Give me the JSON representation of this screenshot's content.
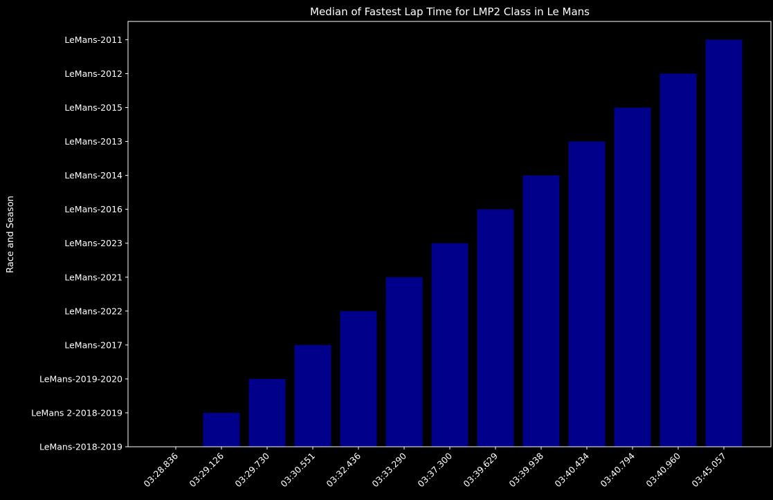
{
  "chart_data": {
    "type": "bar",
    "title": "Median of Fastest Lap Time for LMP2 Class in Le Mans",
    "xlabel": "",
    "ylabel": "Race and Season",
    "categories": [
      "03:28.836",
      "03:29.126",
      "03:29.730",
      "03:30.551",
      "03:32.436",
      "03:33.290",
      "03:37.300",
      "03:39.629",
      "03:39.938",
      "03:40.434",
      "03:40.794",
      "03:40.960",
      "03:45.057"
    ],
    "yticks": [
      "LeMans-2018-2019",
      "LeMans 2-2018-2019",
      "LeMans-2019-2020",
      "LeMans-2017",
      "LeMans-2022",
      "LeMans-2021",
      "LeMans-2023",
      "LeMans-2016",
      "LeMans-2014",
      "LeMans-2013",
      "LeMans-2015",
      "LeMans-2012",
      "LeMans-2011"
    ],
    "values": [
      "LeMans-2018-2019",
      "LeMans 2-2018-2019",
      "LeMans-2019-2020",
      "LeMans-2017",
      "LeMans-2022",
      "LeMans-2021",
      "LeMans-2023",
      "LeMans-2016",
      "LeMans-2014",
      "LeMans-2013",
      "LeMans-2015",
      "LeMans-2012",
      "LeMans-2011"
    ],
    "bar_color": "#00008b",
    "background": "#000000",
    "text_color": "#ffffff",
    "grid": false,
    "legend": "none"
  }
}
